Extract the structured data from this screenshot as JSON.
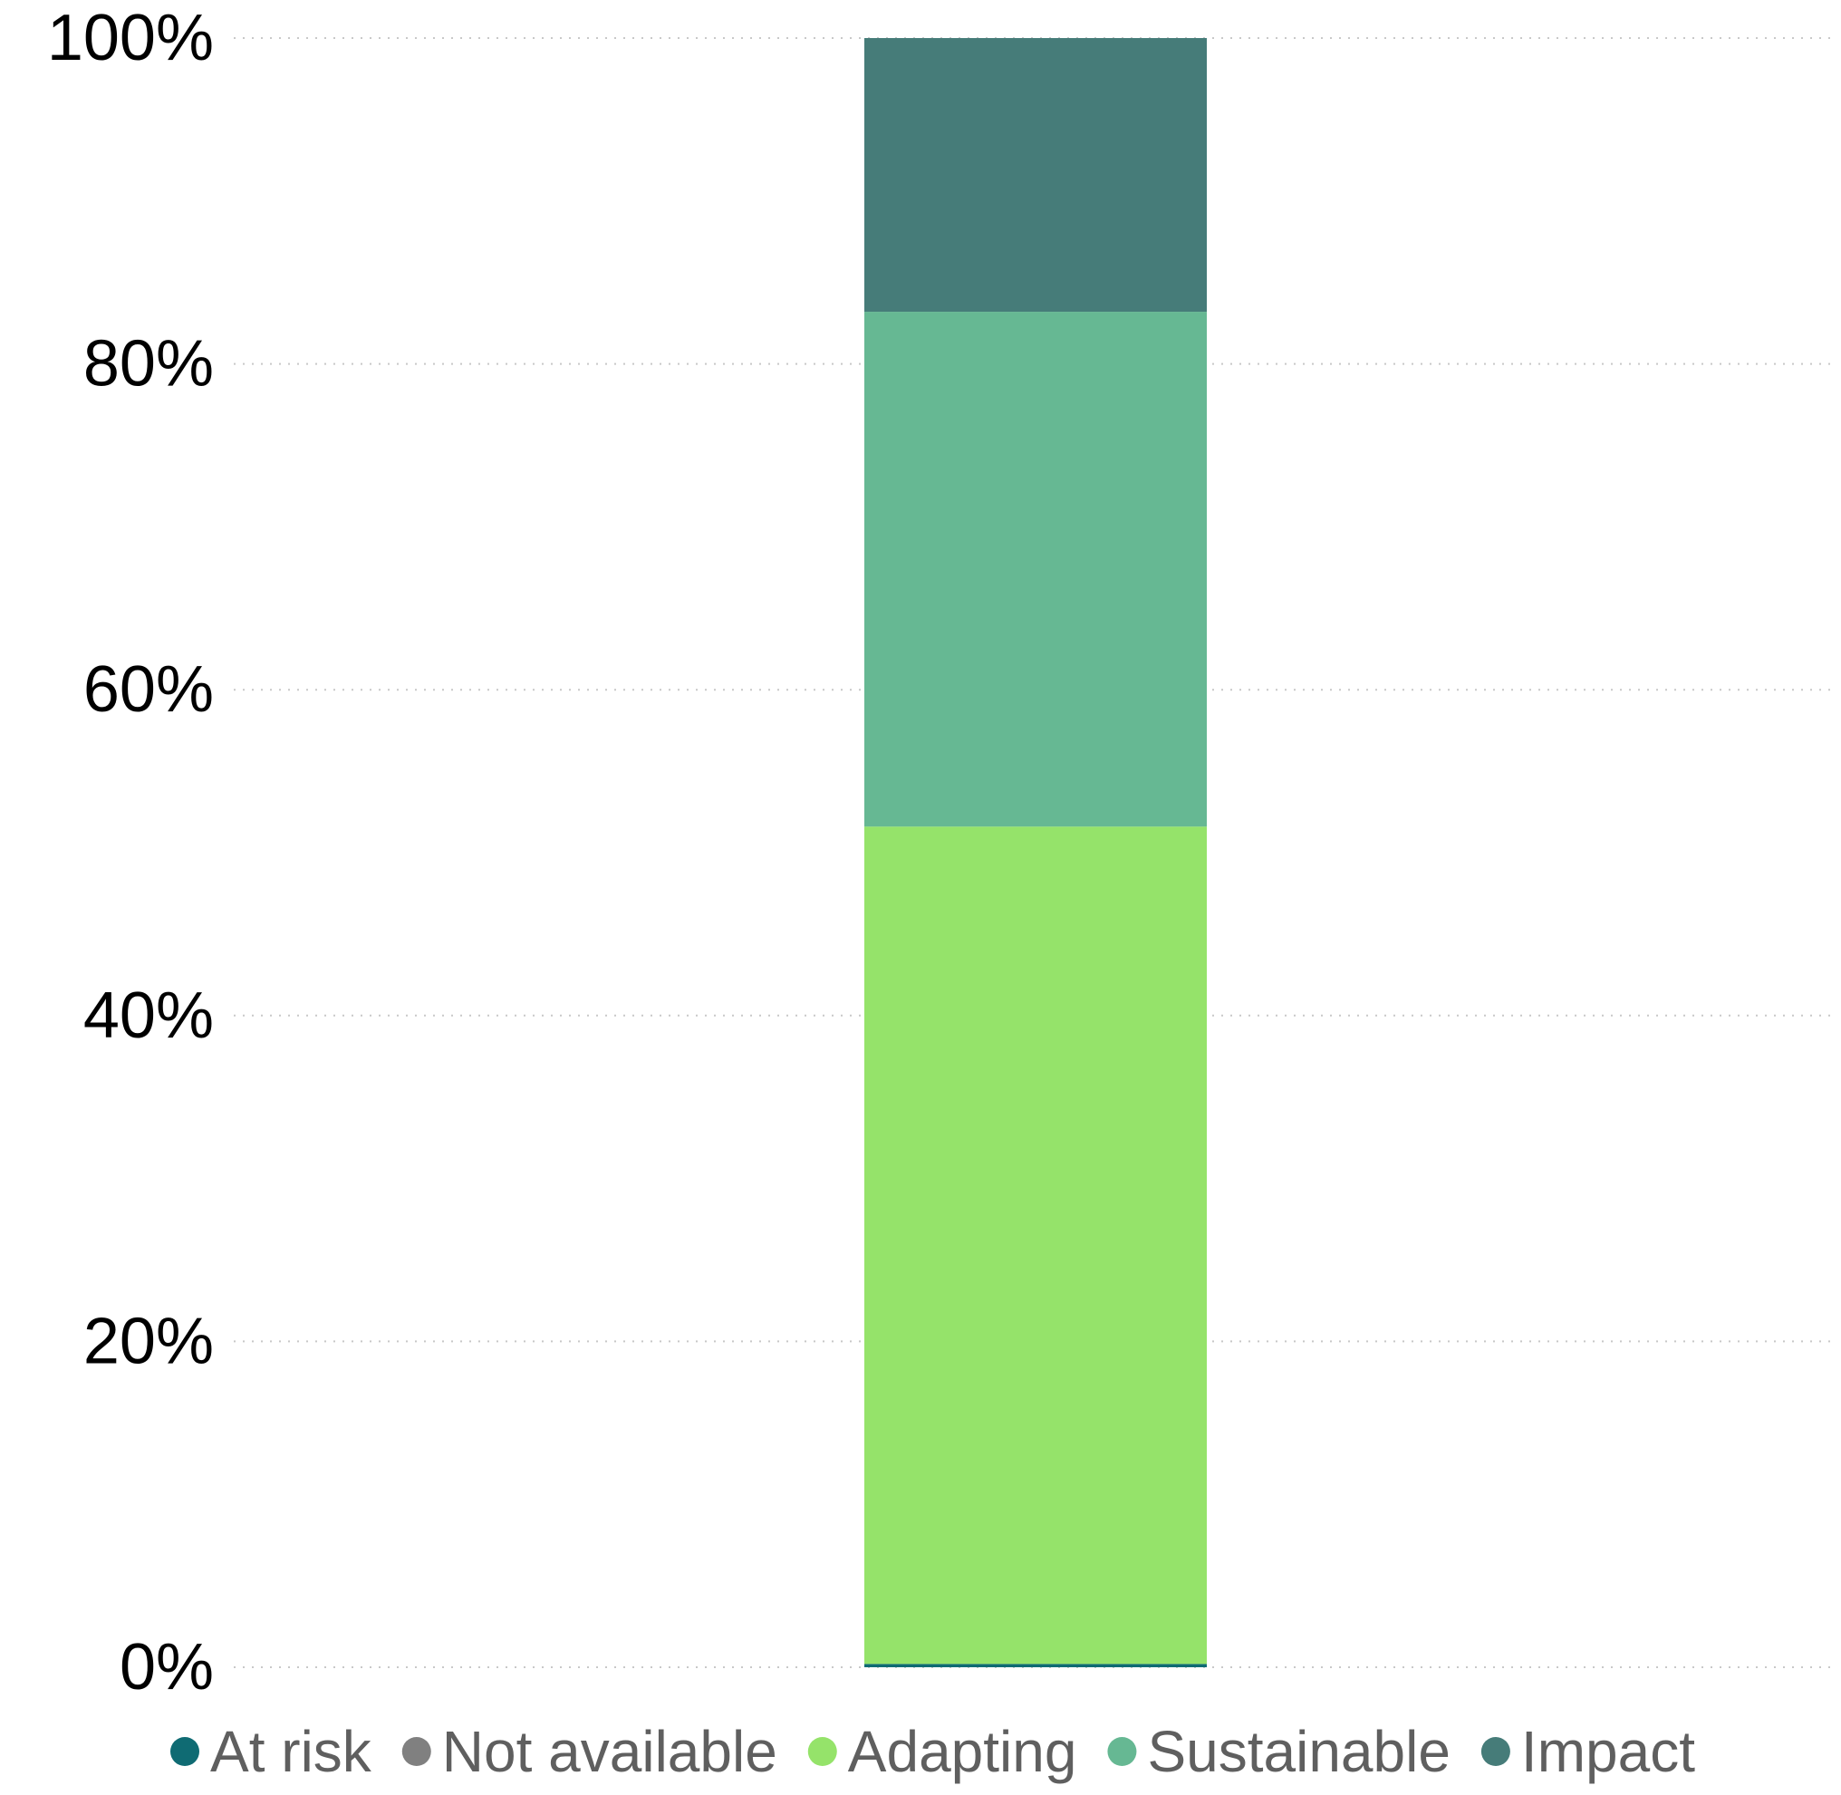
{
  "chart_data": {
    "type": "bar",
    "stacked": true,
    "percent": true,
    "categories": [
      ""
    ],
    "series": [
      {
        "name": "At risk",
        "color": "#0f6b73",
        "values": [
          0.2
        ]
      },
      {
        "name": "Not available",
        "color": "#808080",
        "values": [
          0
        ]
      },
      {
        "name": "Adapting",
        "color": "#95e36a",
        "values": [
          51.4
        ]
      },
      {
        "name": "Sustainable",
        "color": "#66b893",
        "values": [
          31.6
        ]
      },
      {
        "name": "Impact",
        "color": "#467c79",
        "values": [
          16.8
        ]
      }
    ],
    "y_ticks": [
      "0%",
      "20%",
      "40%",
      "60%",
      "80%",
      "100%"
    ],
    "ylim": [
      0,
      100
    ],
    "grid": true,
    "legend_position": "bottom"
  }
}
